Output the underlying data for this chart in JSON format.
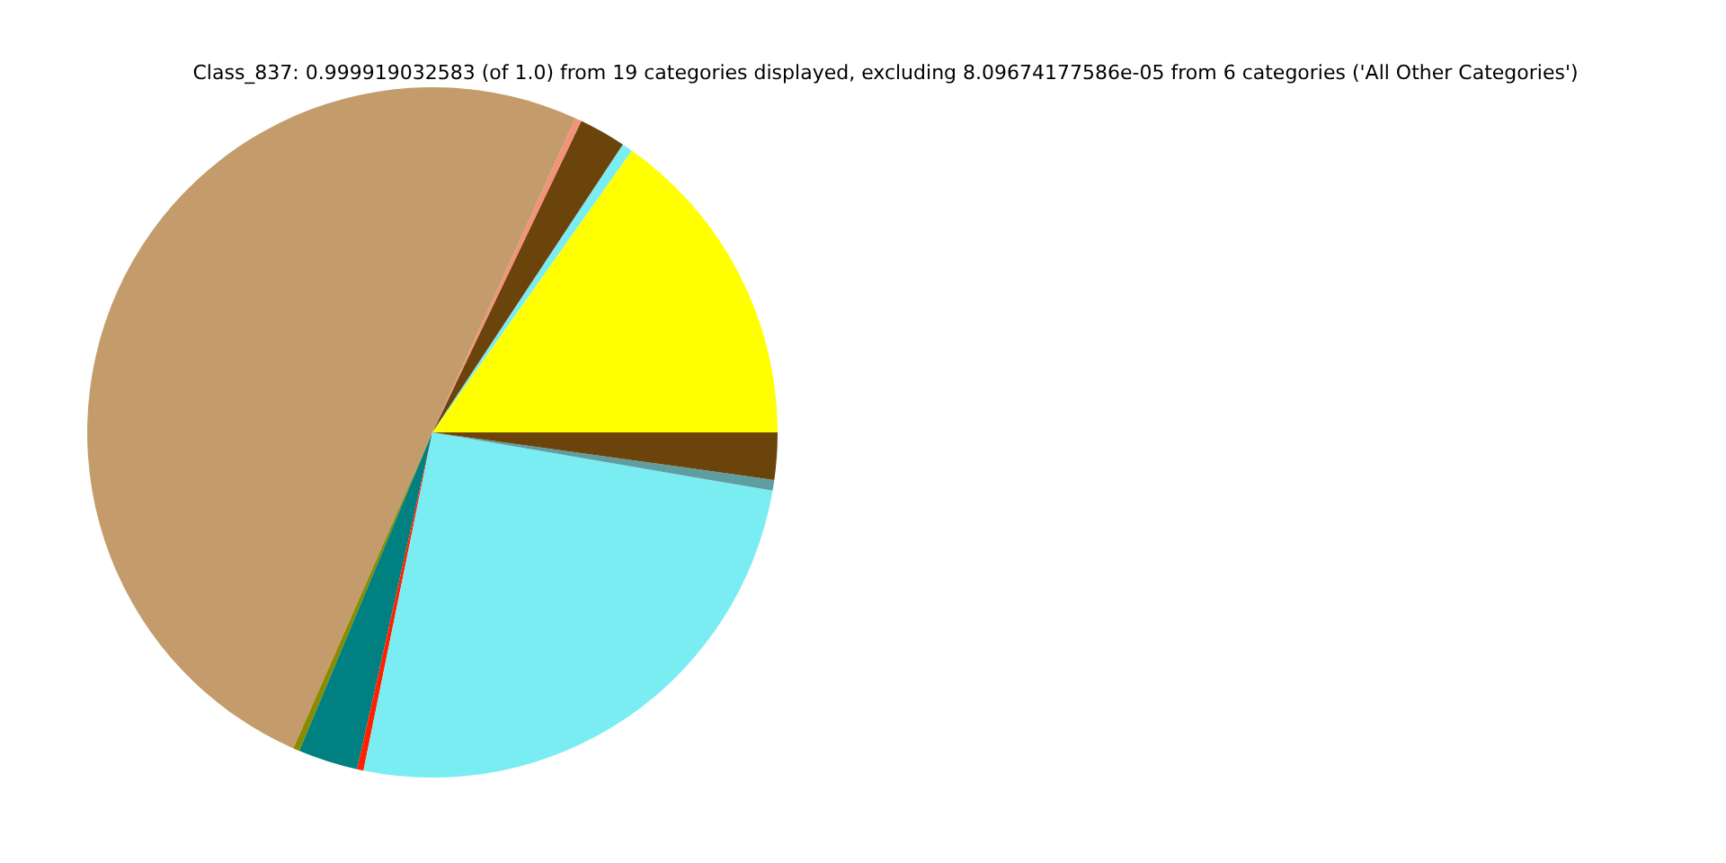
{
  "chart_data": {
    "type": "pie",
    "title": "Class_837: 0.999919032583 (of 1.0) from 19 categories displayed, excluding 8.09674177586e-05 from 6 categories ('All Other Categories')",
    "categories": [
      null,
      null,
      null,
      null,
      null,
      null,
      null,
      null,
      null,
      null,
      null
    ],
    "values": [
      15.2,
      0.5,
      2.2,
      0.3,
      50.2,
      0.3,
      2.8,
      0.3,
      25.5,
      0.5,
      2.2
    ],
    "colors": [
      "#ffff00",
      "#7aedf3",
      "#6b440c",
      "#f4917a",
      "#c49c6b",
      "#8b8b00",
      "#008080",
      "#ff2000",
      "#7aedf3",
      "#5f9ea0",
      "#6b440c"
    ]
  }
}
